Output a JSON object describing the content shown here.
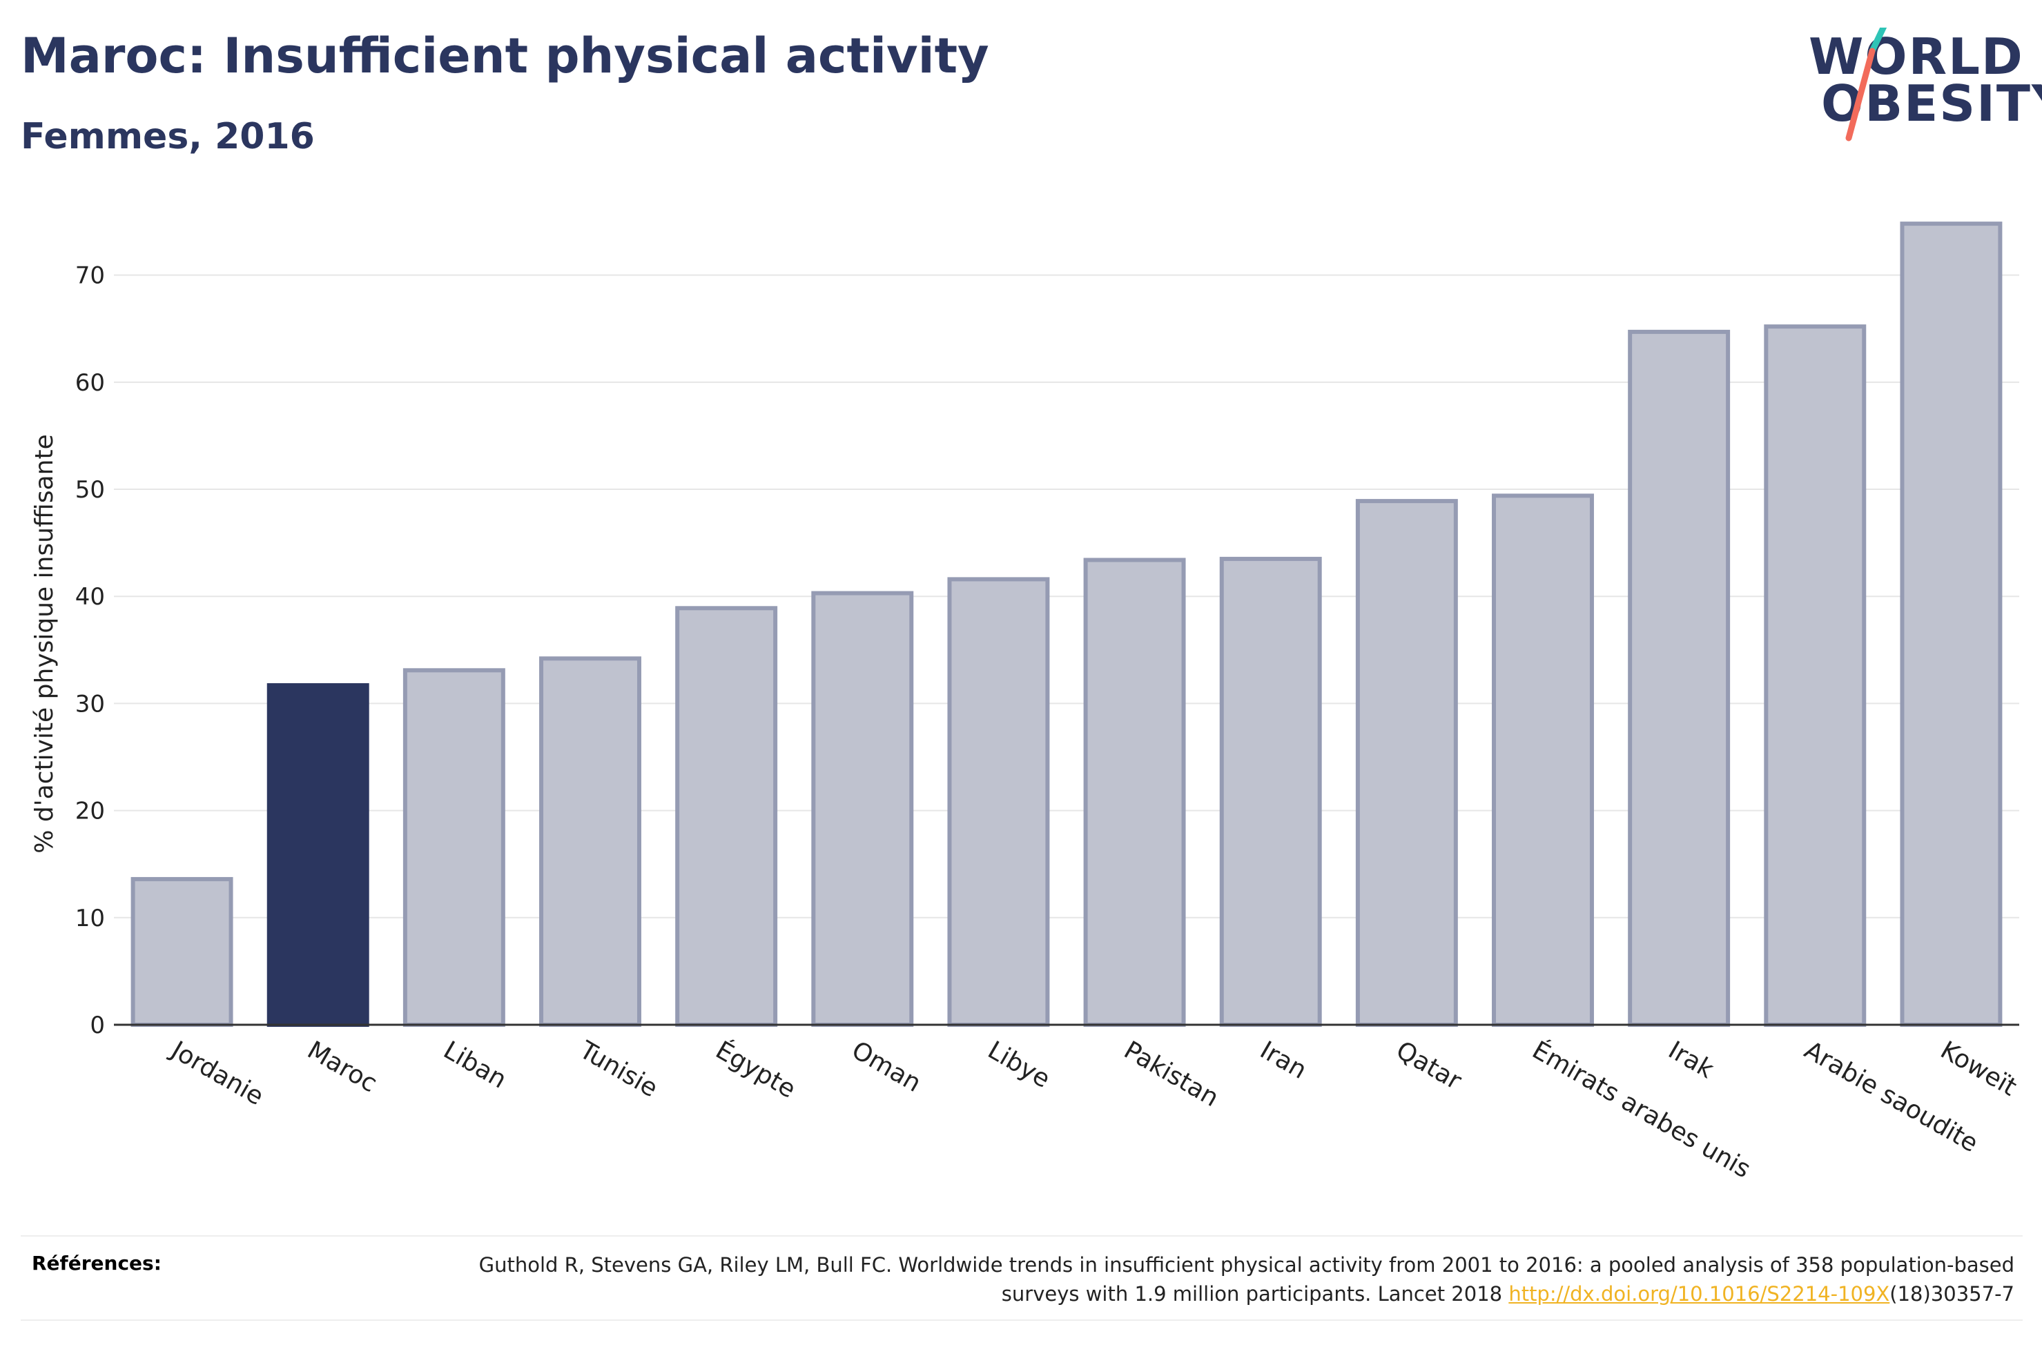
{
  "header": {
    "title": "Maroc: Insufficient physical activity",
    "subtitle": "Femmes, 2016"
  },
  "logo": {
    "line1": "WORLD",
    "line2": "OBESITY",
    "accent_colors": [
      "#2ec4b6",
      "#f26b5b"
    ]
  },
  "colors": {
    "highlight": "#2b365f",
    "bar_fill": "#bfc2cf",
    "bar_stroke": "#959bb3",
    "grid": "#e6e6e6",
    "axis": "#333333",
    "link": "#f0b323"
  },
  "chart_data": {
    "type": "bar",
    "categories": [
      "Jordanie",
      "Maroc",
      "Liban",
      "Tunisie",
      "Égypte",
      "Oman",
      "Libye",
      "Pakistan",
      "Iran",
      "Qatar",
      "Émirats arabes unis",
      "Irak",
      "Arabie saoudite",
      "Koweït"
    ],
    "values": [
      13.6,
      31.7,
      33.1,
      34.2,
      38.9,
      40.3,
      41.6,
      43.4,
      43.5,
      48.9,
      49.4,
      64.7,
      65.2,
      74.8
    ],
    "highlight_category": "Maroc",
    "title": "Maroc: Insufficient physical activity",
    "subtitle": "Femmes, 2016",
    "xlabel": "",
    "ylabel": "% d'activité physique insuffisante",
    "ylim": [
      0,
      77
    ],
    "yticks": [
      0,
      10,
      20,
      30,
      40,
      50,
      60,
      70
    ],
    "grid": true,
    "legend": "none"
  },
  "references": {
    "label": "Références:",
    "text": "Guthold R, Stevens GA, Riley LM, Bull FC. Worldwide trends in insufficient physical activity from 2001 to 2016: a pooled analysis of 358 population-based surveys with 1.9 million participants. Lancet 2018 ",
    "link": "http://dx.doi.org/10.1016/S2214-109X",
    "tail": "(18)30357-7"
  }
}
